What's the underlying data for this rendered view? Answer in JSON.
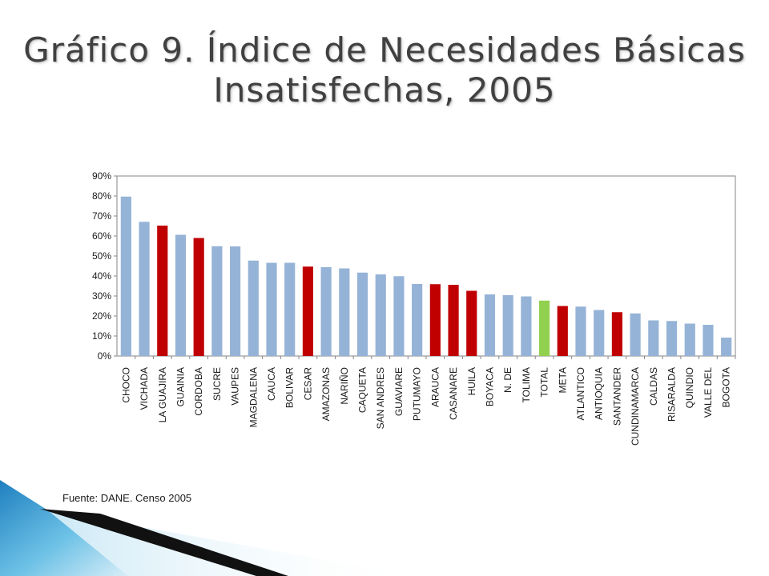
{
  "slide": {
    "title_line1": "Gráfico 9. Índice de Necesidades Básicas",
    "title_line2": "Insatisfechas, 2005",
    "source": "Fuente: DANE. Censo 2005"
  },
  "colors": {
    "blue": "#95b3d7",
    "red": "#c00000",
    "green": "#92d050",
    "title": "#404040",
    "axis": "#868686",
    "decor_dark": "#111111",
    "decor_blue": "#4aa3d4"
  },
  "chart_data": {
    "type": "bar",
    "title": "",
    "xlabel": "",
    "ylabel": "",
    "ylim": [
      0,
      90
    ],
    "y_tick_step": 10,
    "y_tick_suffix": "%",
    "grid": false,
    "legend": "none",
    "categories": [
      "CHOCO",
      "VICHADA",
      "LA GUAJIRA",
      "GUAINIA",
      "CORDOBA",
      "SUCRE",
      "VAUPES",
      "MAGDALENA",
      "CAUCA",
      "BOLIVAR",
      "CESAR",
      "AMAZONAS",
      "NARIÑO",
      "CAQUETA",
      "SAN ANDRES",
      "GUAVIARE",
      "PUTUMAYO",
      "ARAUCA",
      "CASANARE",
      "HUILA",
      "BOYACA",
      "N. DE",
      "TOLIMA",
      "TOTAL",
      "META",
      "ATLANTICO",
      "ANTIOQUIA",
      "SANTANDER",
      "CUNDINAMARCA",
      "CALDAS",
      "RISARALDA",
      "QUINDIO",
      "VALLE DEL",
      "BOGOTA"
    ],
    "values": [
      79.7,
      67.1,
      65.2,
      60.6,
      59.0,
      54.9,
      54.8,
      47.7,
      46.6,
      46.6,
      44.7,
      44.4,
      43.8,
      41.7,
      40.8,
      39.9,
      36.0,
      35.9,
      35.6,
      32.6,
      30.8,
      30.4,
      29.8,
      27.7,
      25.0,
      24.7,
      23.0,
      21.9,
      21.3,
      17.8,
      17.5,
      16.2,
      15.6,
      9.2
    ],
    "bar_colors": [
      "blue",
      "blue",
      "red",
      "blue",
      "red",
      "blue",
      "blue",
      "blue",
      "blue",
      "blue",
      "red",
      "blue",
      "blue",
      "blue",
      "blue",
      "blue",
      "blue",
      "red",
      "red",
      "red",
      "blue",
      "blue",
      "blue",
      "green",
      "red",
      "blue",
      "blue",
      "red",
      "blue",
      "blue",
      "blue",
      "blue",
      "blue",
      "blue"
    ]
  }
}
